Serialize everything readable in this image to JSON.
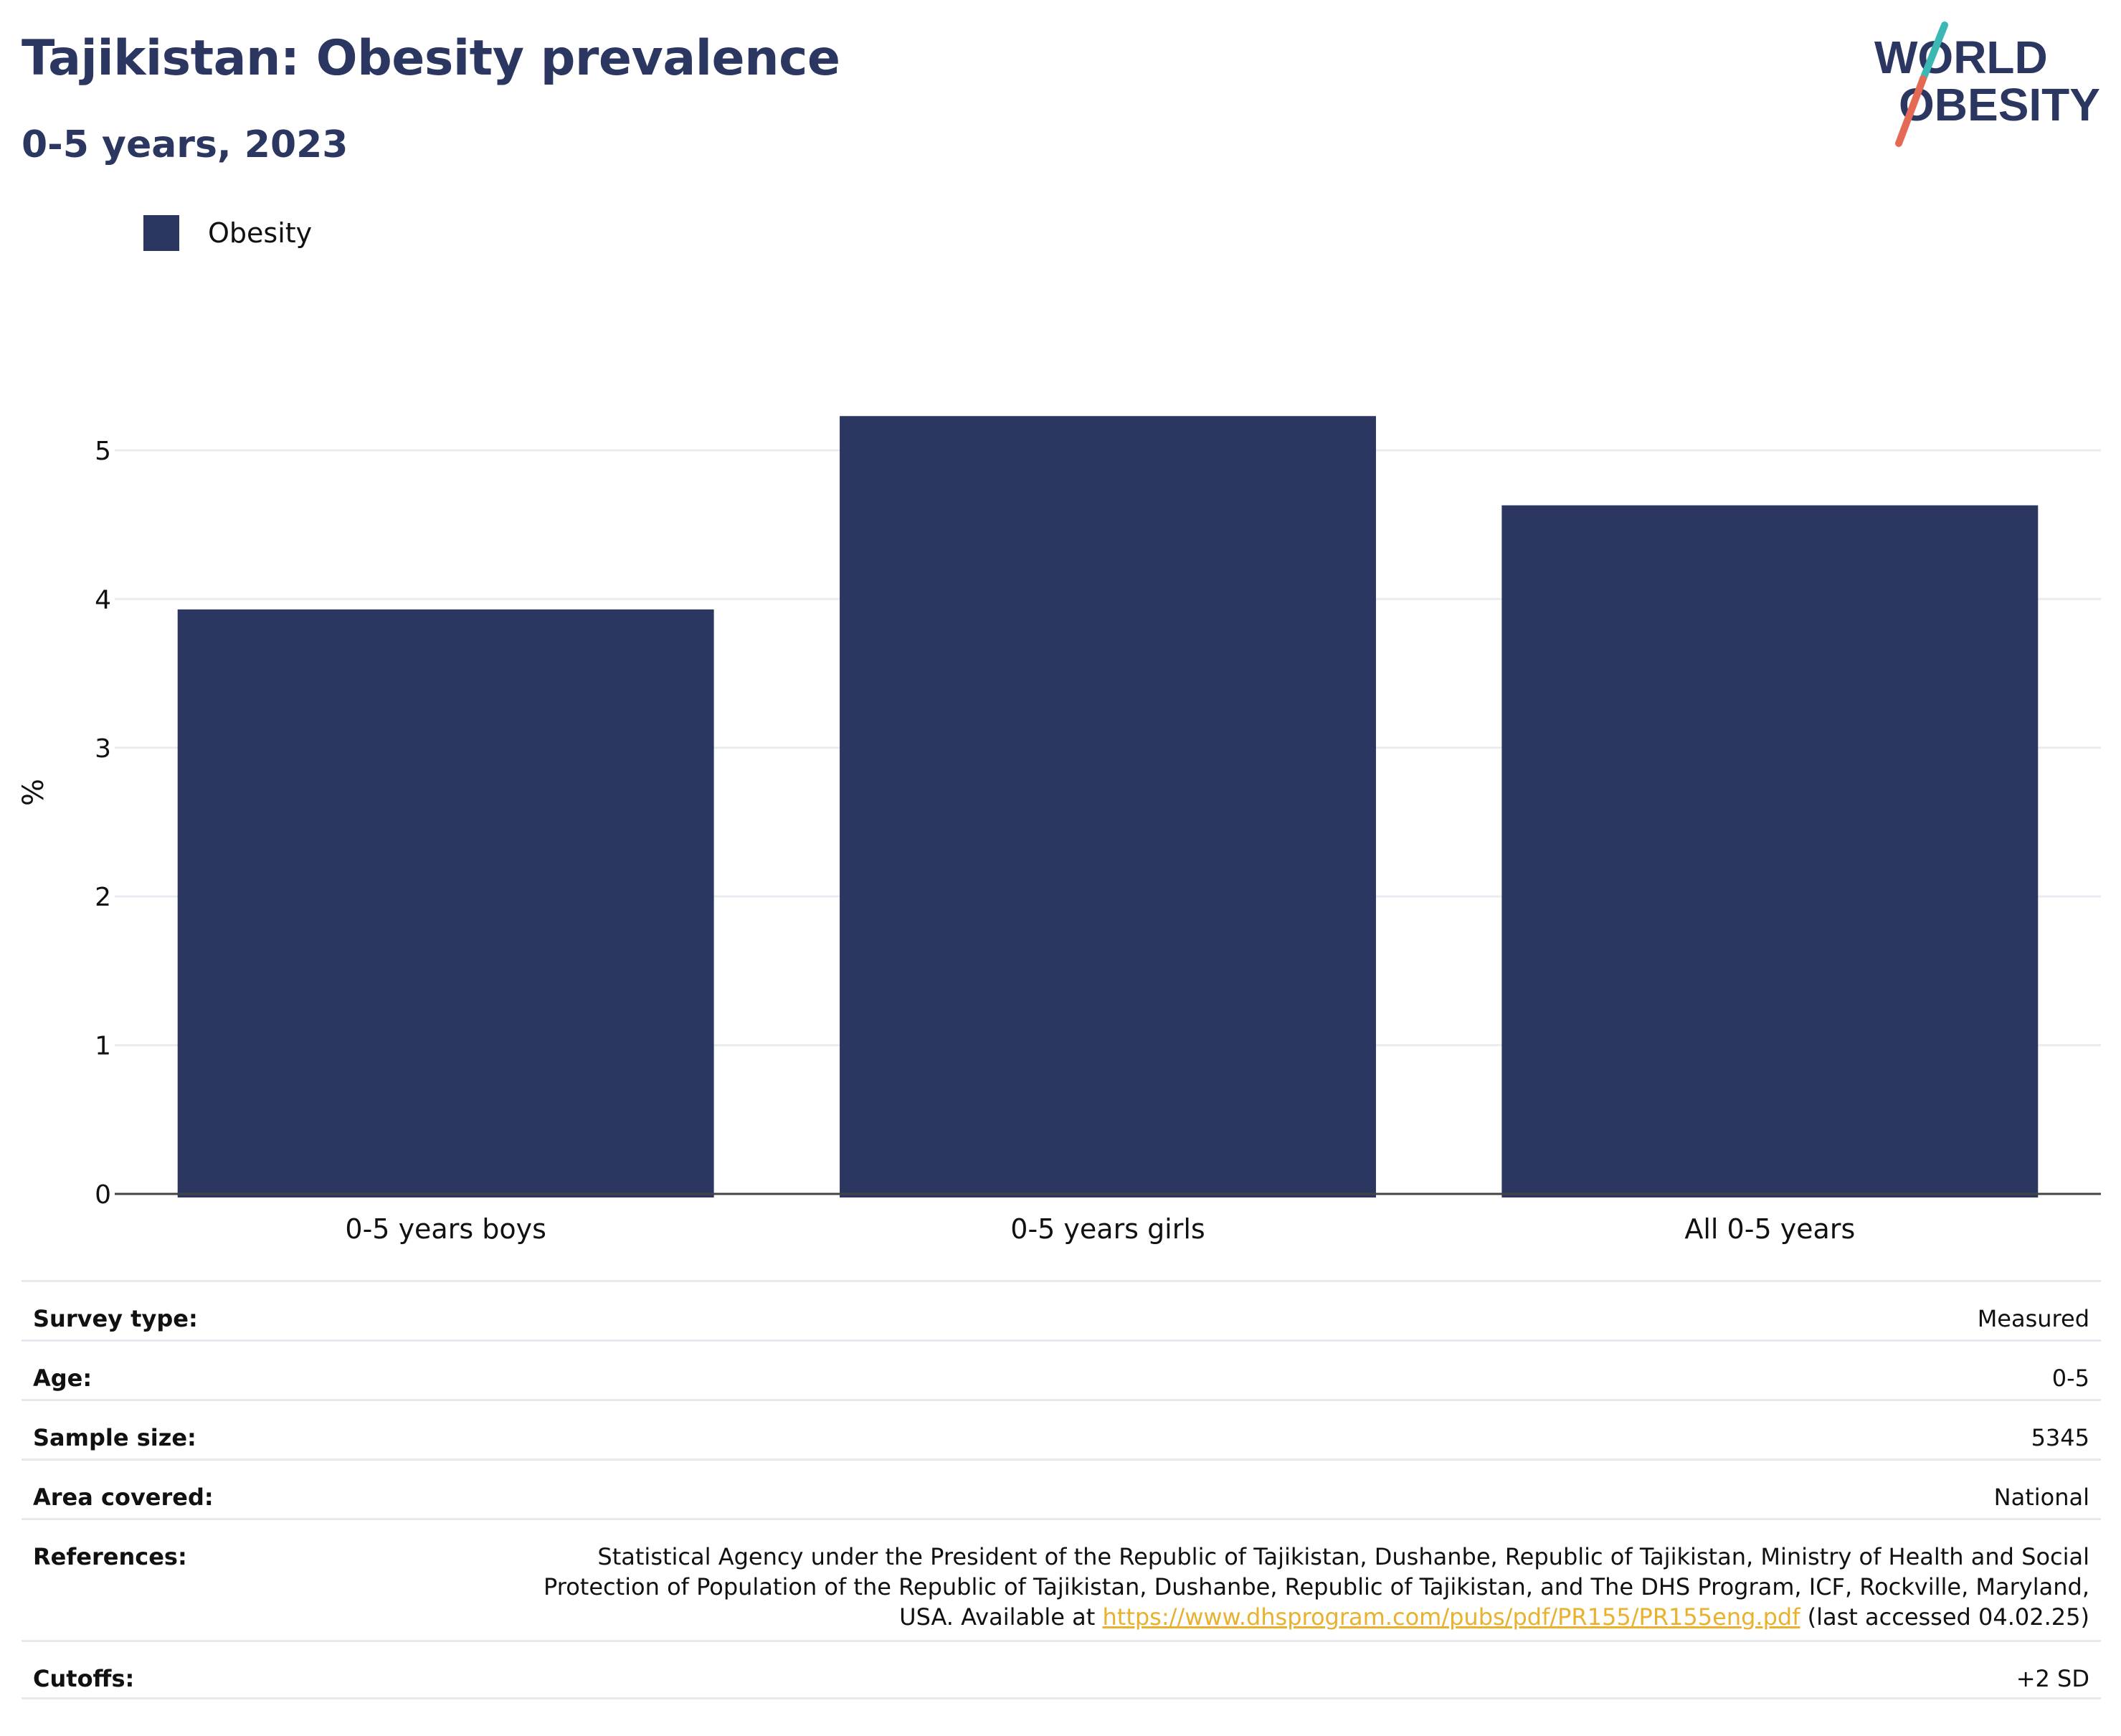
{
  "header": {
    "title": "Tajikistan: Obesity prevalence",
    "subtitle": "0-5 years, 2023"
  },
  "logo": {
    "line1": "WORLD",
    "line2": "OBESITY",
    "colors": {
      "text": "#2b3661",
      "slash_top": "#3bb8b3",
      "slash_bottom": "#e56a55"
    }
  },
  "legend": {
    "items": [
      {
        "label": "Obesity",
        "color": "#2b3661"
      }
    ]
  },
  "chart_data": {
    "type": "bar",
    "categories": [
      "0-5 years boys",
      "0-5 years girls",
      "All 0-5 years"
    ],
    "series": [
      {
        "name": "Obesity",
        "values": [
          3.93,
          5.23,
          4.63
        ],
        "color": "#2b3661"
      }
    ],
    "ylabel": "%",
    "xlabel": "",
    "ylim": [
      0,
      5.4
    ],
    "yticks": [
      0,
      1,
      2,
      3,
      4,
      5
    ],
    "grid": true,
    "legend_position": "top-left"
  },
  "meta": {
    "rows": [
      {
        "key": "Survey type:",
        "value": "Measured"
      },
      {
        "key": "Age:",
        "value": "0-5"
      },
      {
        "key": "Sample size:",
        "value": "5345"
      },
      {
        "key": "Area covered:",
        "value": "National"
      },
      {
        "key": "Cutoffs:",
        "value": "+2 SD"
      }
    ],
    "references": {
      "key": "References:",
      "line1": "Statistical Agency under the President of the Republic of Tajikistan, Dushanbe, Republic of Tajikistan, Ministry of Health and Social",
      "line2": "Protection of Population of the Republic of Tajikistan, Dushanbe, Republic of Tajikistan, and The DHS Program, ICF, Rockville, Maryland,",
      "line3_prefix": "USA. Available at ",
      "link": "https://www.dhsprogram.com/pubs/pdf/PR155/PR155eng.pdf",
      "line3_suffix": " (last accessed 04.02.25)"
    }
  }
}
